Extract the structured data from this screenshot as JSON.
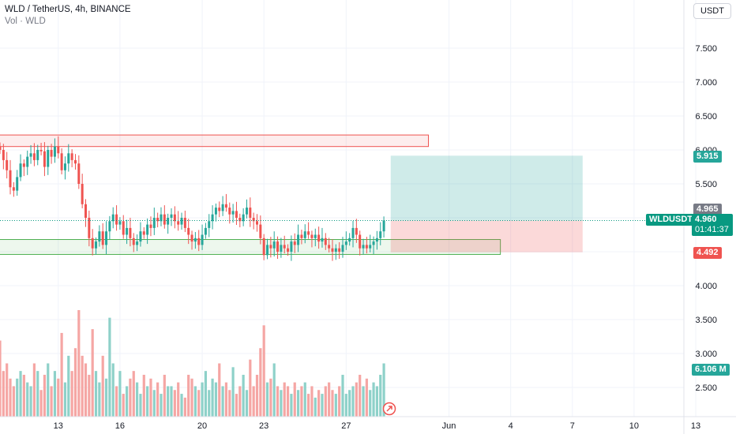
{
  "legend": {
    "title": "WLD / TetherUS, 4h, BINANCE",
    "volume_label": "Vol · WLD"
  },
  "currency_button": "USDT",
  "symbol_tag": "WLDUSDT",
  "last_price": "4.960",
  "countdown": "01:41:37",
  "target_tag": "5.915",
  "stop_tag": "4.492",
  "prev_close_tag": "4.965",
  "volume_tag": "6.106 M",
  "colors": {
    "up": "#26a69a",
    "down": "#ef5350",
    "up_volume": "#8ed1c9",
    "down_volume": "#f5a6a4",
    "target_zone": "#26a69a",
    "stop_zone": "#ef5350",
    "resistance_box": "#ef5350",
    "support_box": "#4caf50",
    "price_tag": "#089981"
  },
  "chart_data": {
    "type": "candlestick",
    "symbol": "WLD / TetherUS",
    "interval": "4h",
    "exchange": "BINANCE",
    "price_axis": {
      "ticks": [
        "7.500",
        "7.000",
        "6.500",
        "6.000",
        "5.500",
        "5.000",
        "4.500",
        "4.000",
        "3.500",
        "3.000",
        "2.500"
      ],
      "range": [
        2.0,
        8.1
      ]
    },
    "time_axis": {
      "ticks": [
        {
          "label": "13",
          "bar": 17
        },
        {
          "label": "16",
          "bar": 35
        },
        {
          "label": "20",
          "bar": 59
        },
        {
          "label": "23",
          "bar": 77
        },
        {
          "label": "27",
          "bar": 101
        },
        {
          "label": "Jun",
          "bar": 131
        },
        {
          "label": "4",
          "bar": 149
        },
        {
          "label": "7",
          "bar": 167
        },
        {
          "label": "10",
          "bar": 185
        },
        {
          "label": "13",
          "bar": 203
        }
      ]
    },
    "series": [
      {
        "name": "price",
        "closes": [
          6.0,
          5.85,
          5.7,
          5.45,
          5.4,
          5.6,
          5.8,
          5.75,
          5.9,
          5.95,
          5.85,
          6.0,
          5.98,
          5.75,
          6.0,
          5.9,
          6.05,
          5.95,
          5.7,
          5.8,
          5.95,
          5.85,
          5.8,
          5.5,
          5.2,
          5.0,
          4.7,
          4.55,
          4.65,
          4.8,
          4.6,
          4.8,
          4.95,
          5.05,
          4.9,
          4.95,
          4.75,
          4.85,
          4.7,
          4.6,
          4.65,
          4.8,
          4.75,
          4.9,
          4.85,
          5.0,
          4.95,
          5.05,
          4.9,
          5.0,
          5.05,
          4.95,
          4.9,
          5.0,
          4.85,
          4.75,
          4.65,
          4.7,
          4.6,
          4.75,
          4.85,
          4.95,
          5.05,
          5.15,
          5.1,
          5.2,
          5.15,
          5.05,
          5.1,
          5.0,
          4.95,
          5.05,
          5.15,
          5.0,
          4.95,
          4.9,
          4.7,
          4.45,
          4.6,
          4.55,
          4.65,
          4.5,
          4.6,
          4.55,
          4.5,
          4.65,
          4.6,
          4.75,
          4.7,
          4.8,
          4.75,
          4.7,
          4.75,
          4.65,
          4.7,
          4.6,
          4.55,
          4.5,
          4.55,
          4.5,
          4.6,
          4.65,
          4.7,
          4.85,
          4.75,
          4.55,
          4.6,
          4.55,
          4.6,
          4.65,
          4.7,
          4.8,
          4.96
        ],
        "volumes": [
          1.0,
          0.6,
          0.7,
          0.5,
          0.4,
          0.5,
          0.6,
          0.55,
          0.45,
          0.4,
          0.7,
          0.6,
          0.35,
          0.55,
          0.7,
          0.4,
          0.6,
          0.5,
          1.1,
          0.45,
          0.8,
          0.6,
          0.9,
          1.4,
          0.8,
          0.7,
          0.55,
          1.15,
          0.6,
          0.45,
          0.8,
          0.5,
          1.3,
          0.7,
          0.4,
          0.6,
          0.3,
          0.4,
          0.5,
          0.6,
          0.45,
          0.3,
          0.55,
          0.4,
          0.5,
          0.35,
          0.45,
          0.3,
          0.55,
          0.4,
          0.4,
          0.35,
          0.45,
          0.3,
          0.25,
          0.55,
          0.5,
          0.4,
          0.35,
          0.45,
          0.6,
          0.35,
          0.5,
          0.45,
          0.7,
          0.4,
          0.45,
          0.35,
          0.65,
          0.3,
          0.4,
          0.55,
          0.35,
          0.75,
          0.4,
          0.55,
          0.9,
          1.2,
          0.45,
          0.5,
          0.7,
          0.4,
          0.35,
          0.45,
          0.4,
          0.3,
          0.45,
          0.35,
          0.4,
          0.45,
          0.3,
          0.4,
          0.25,
          0.35,
          0.3,
          0.4,
          0.45,
          0.35,
          0.3,
          0.4,
          0.55,
          0.3,
          0.35,
          0.4,
          0.45,
          0.55,
          0.4,
          0.5,
          0.35,
          0.45,
          0.4,
          0.55,
          0.7
        ]
      }
    ],
    "boxes": [
      {
        "name": "resistance-zone",
        "from_bar": -2,
        "to_bar": 125,
        "top": 6.22,
        "bottom": 6.05
      },
      {
        "name": "support-zone",
        "from_bar": -2,
        "to_bar": 146,
        "top": 4.68,
        "bottom": 4.46
      }
    ],
    "position": {
      "type": "long",
      "entry": 4.96,
      "target": 5.915,
      "stop": 4.492,
      "from_bar": 114,
      "to_bar": 170
    }
  }
}
